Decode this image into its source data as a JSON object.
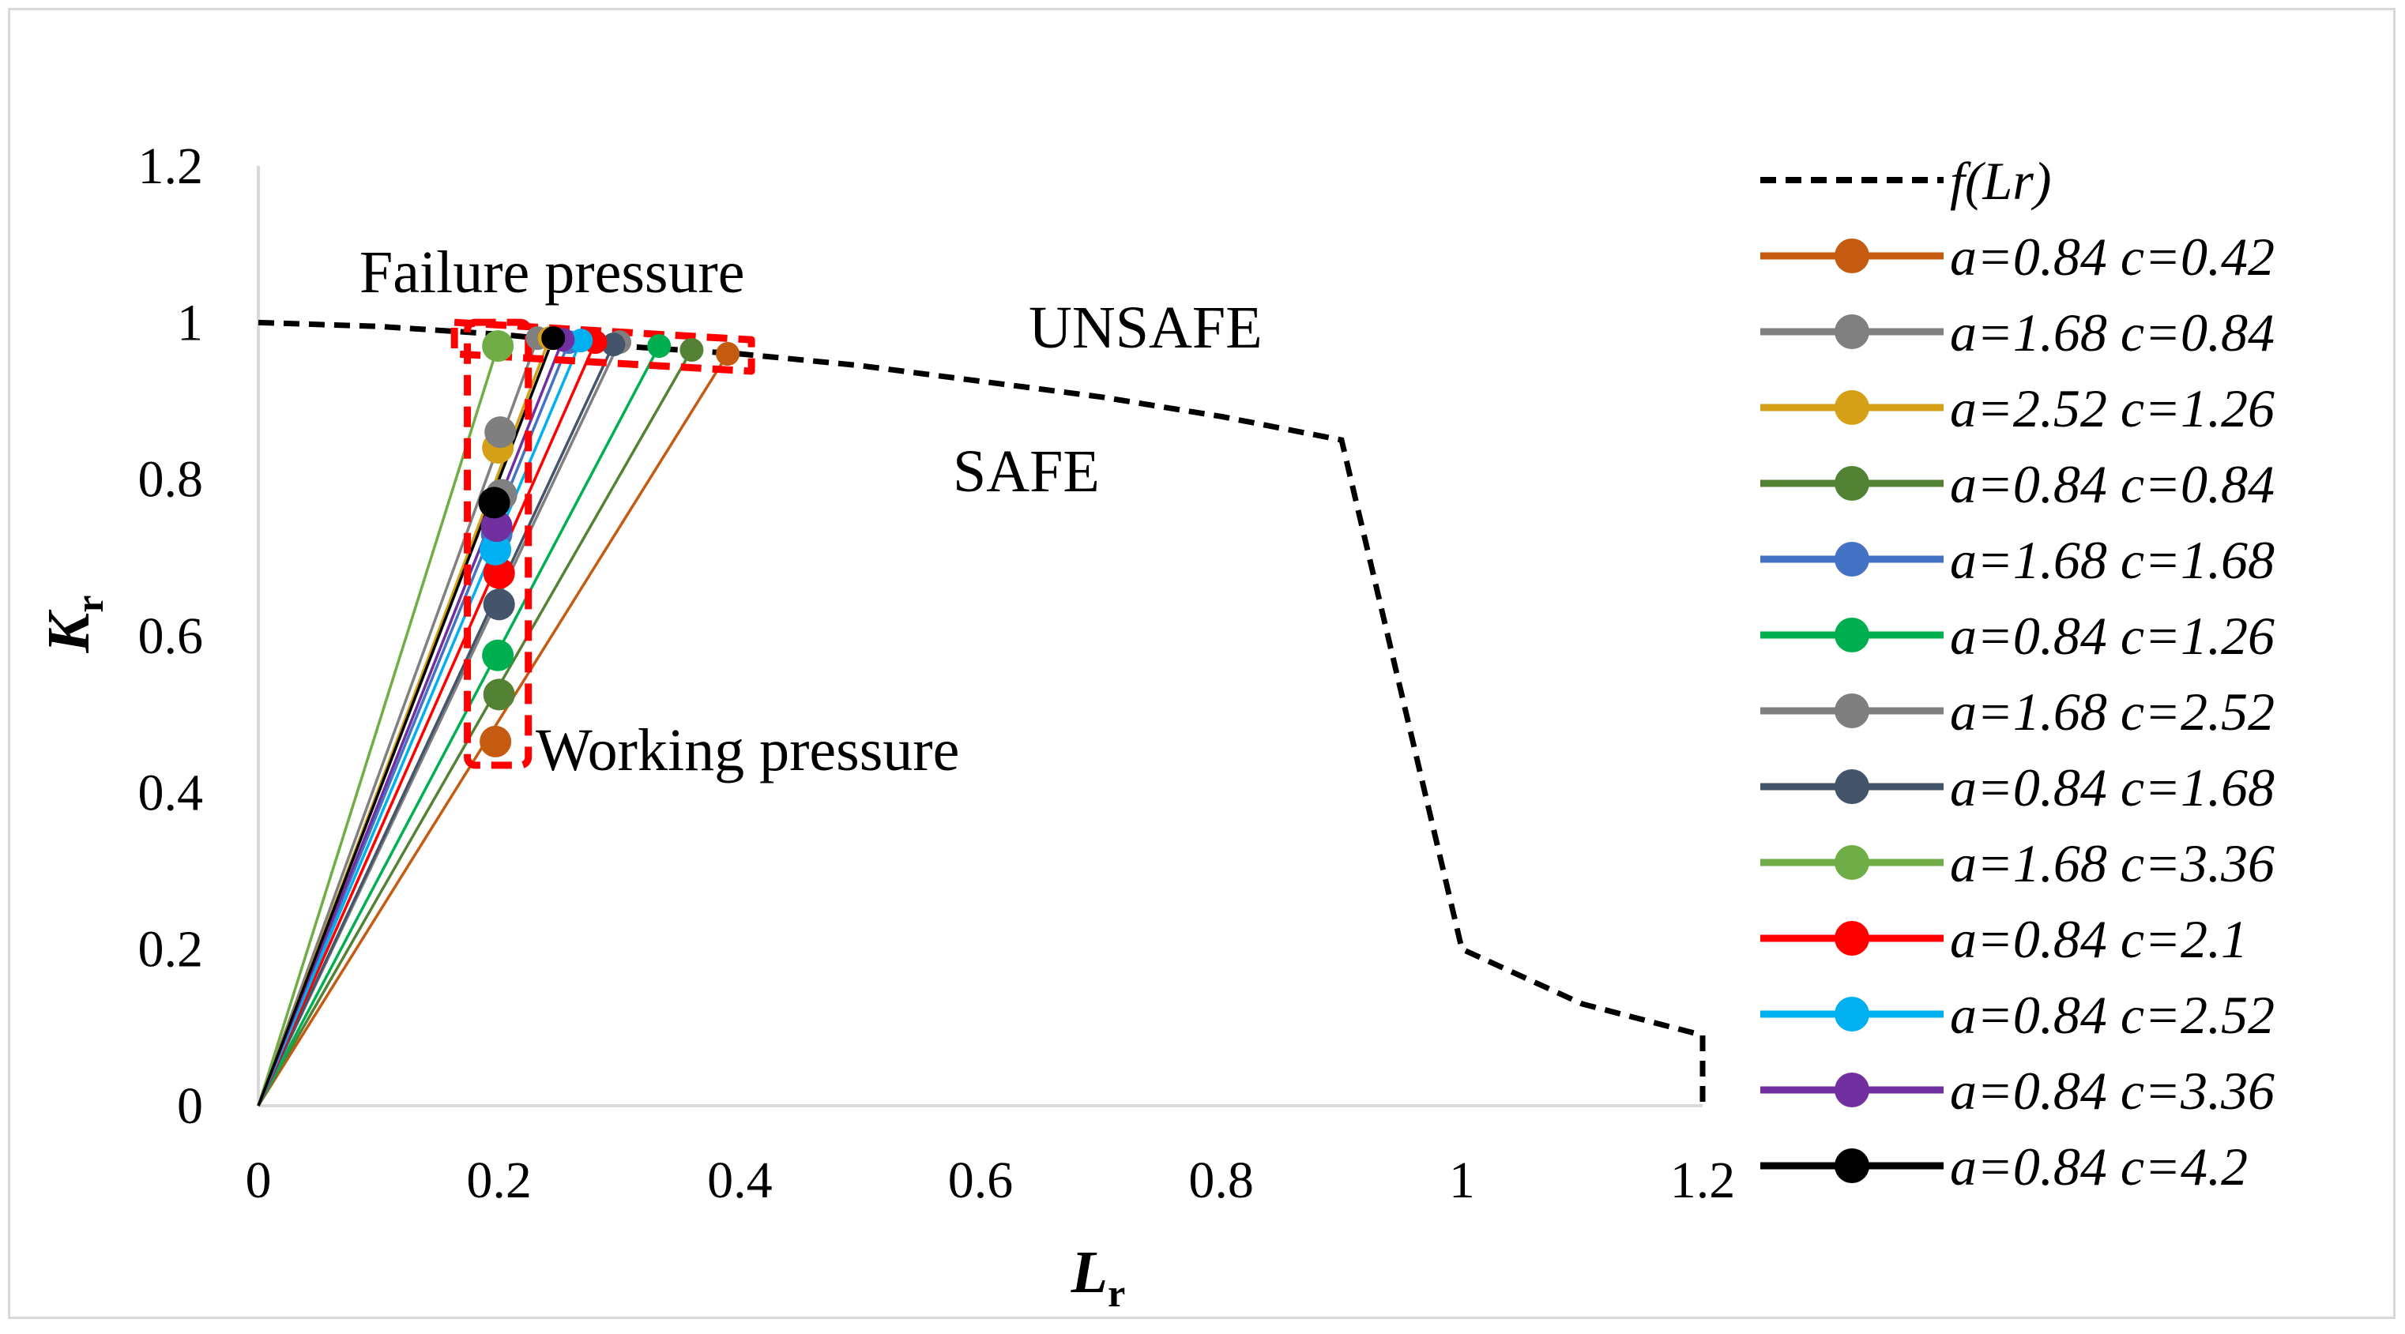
{
  "chart_data": {
    "type": "line",
    "title": "",
    "xlabel": "L",
    "xlabel_sub": "r",
    "ylabel": "K",
    "ylabel_sub": "r",
    "xlim": [
      0,
      1.2
    ],
    "ylim": [
      0,
      1.2
    ],
    "xticks": [
      0,
      0.2,
      0.4,
      0.6,
      0.8,
      1,
      1.2
    ],
    "yticks": [
      0,
      0.2,
      0.4,
      0.6,
      0.8,
      1,
      1.2
    ],
    "xtick_labels": [
      "0",
      "0.2",
      "0.4",
      "0.6",
      "0.8",
      "1",
      "1.2"
    ],
    "ytick_labels": [
      "0",
      "0.2",
      "0.4",
      "0.6",
      "0.8",
      "1",
      "1.2"
    ],
    "grid": false,
    "legend_position": "right",
    "fail_curve": {
      "name": "f(Lr)",
      "color": "#000000",
      "x": [
        0,
        0.1,
        0.2,
        0.3,
        0.4,
        0.5,
        0.6,
        0.7,
        0.8,
        0.9,
        1.0,
        1.1,
        1.2,
        1.2
      ],
      "y": [
        1.0,
        0.995,
        0.985,
        0.97,
        0.96,
        0.945,
        0.925,
        0.905,
        0.88,
        0.85,
        0.2,
        0.13,
        0.09,
        0.0
      ]
    },
    "series": [
      {
        "name": "a=0.84 c=0.42",
        "color": "#C55A11",
        "working": [
          0.197,
          0.465
        ],
        "failure": [
          0.39,
          0.96
        ]
      },
      {
        "name": "a=1.68 c=0.84",
        "color": "#808080",
        "working": [
          0.202,
          0.78
        ],
        "failure": [
          0.232,
          0.98
        ]
      },
      {
        "name": "a=2.52 c=1.26",
        "color": "#D4A017",
        "working": [
          0.199,
          0.84
        ],
        "failure": [
          0.242,
          0.98
        ]
      },
      {
        "name": "a=0.84 c=0.84",
        "color": "#548235",
        "working": [
          0.2,
          0.525
        ],
        "failure": [
          0.36,
          0.965
        ]
      },
      {
        "name": "a=1.68 c=1.68",
        "color": "#4472C4",
        "working": [
          0.198,
          0.73
        ],
        "failure": [
          0.258,
          0.975
        ]
      },
      {
        "name": "a=0.84 c=1.26",
        "color": "#00B050",
        "working": [
          0.199,
          0.575
        ],
        "failure": [
          0.333,
          0.97
        ]
      },
      {
        "name": "a=1.68 c=2.52",
        "color": "#7F7F7F",
        "working": [
          0.201,
          0.86
        ],
        "failure": [
          0.3,
          0.975
        ]
      },
      {
        "name": "a=0.84 c=1.68",
        "color": "#44546A",
        "working": [
          0.2,
          0.64
        ],
        "failure": [
          0.295,
          0.972
        ]
      },
      {
        "name": "a=1.68 c=3.36",
        "color": "#70AD47",
        "working": [
          0.199,
          0.97
        ],
        "failure": [
          0.199,
          0.97
        ]
      },
      {
        "name": "a=0.84 c=2.1",
        "color": "#FF0000",
        "working": [
          0.2,
          0.68
        ],
        "failure": [
          0.28,
          0.975
        ]
      },
      {
        "name": "a=0.84 c=2.52",
        "color": "#00B0F0",
        "working": [
          0.197,
          0.71
        ],
        "failure": [
          0.268,
          0.977
        ]
      },
      {
        "name": "a=0.84 c=3.36",
        "color": "#7030A0",
        "working": [
          0.198,
          0.74
        ],
        "failure": [
          0.253,
          0.978
        ]
      },
      {
        "name": "a=0.84 c=4.2",
        "color": "#000000",
        "working": [
          0.196,
          0.77
        ],
        "failure": [
          0.245,
          0.98
        ]
      }
    ],
    "annotations": {
      "failure": "Failure pressure",
      "working": "Working pressure",
      "unsafe": "UNSAFE",
      "safe": "SAFE"
    }
  }
}
